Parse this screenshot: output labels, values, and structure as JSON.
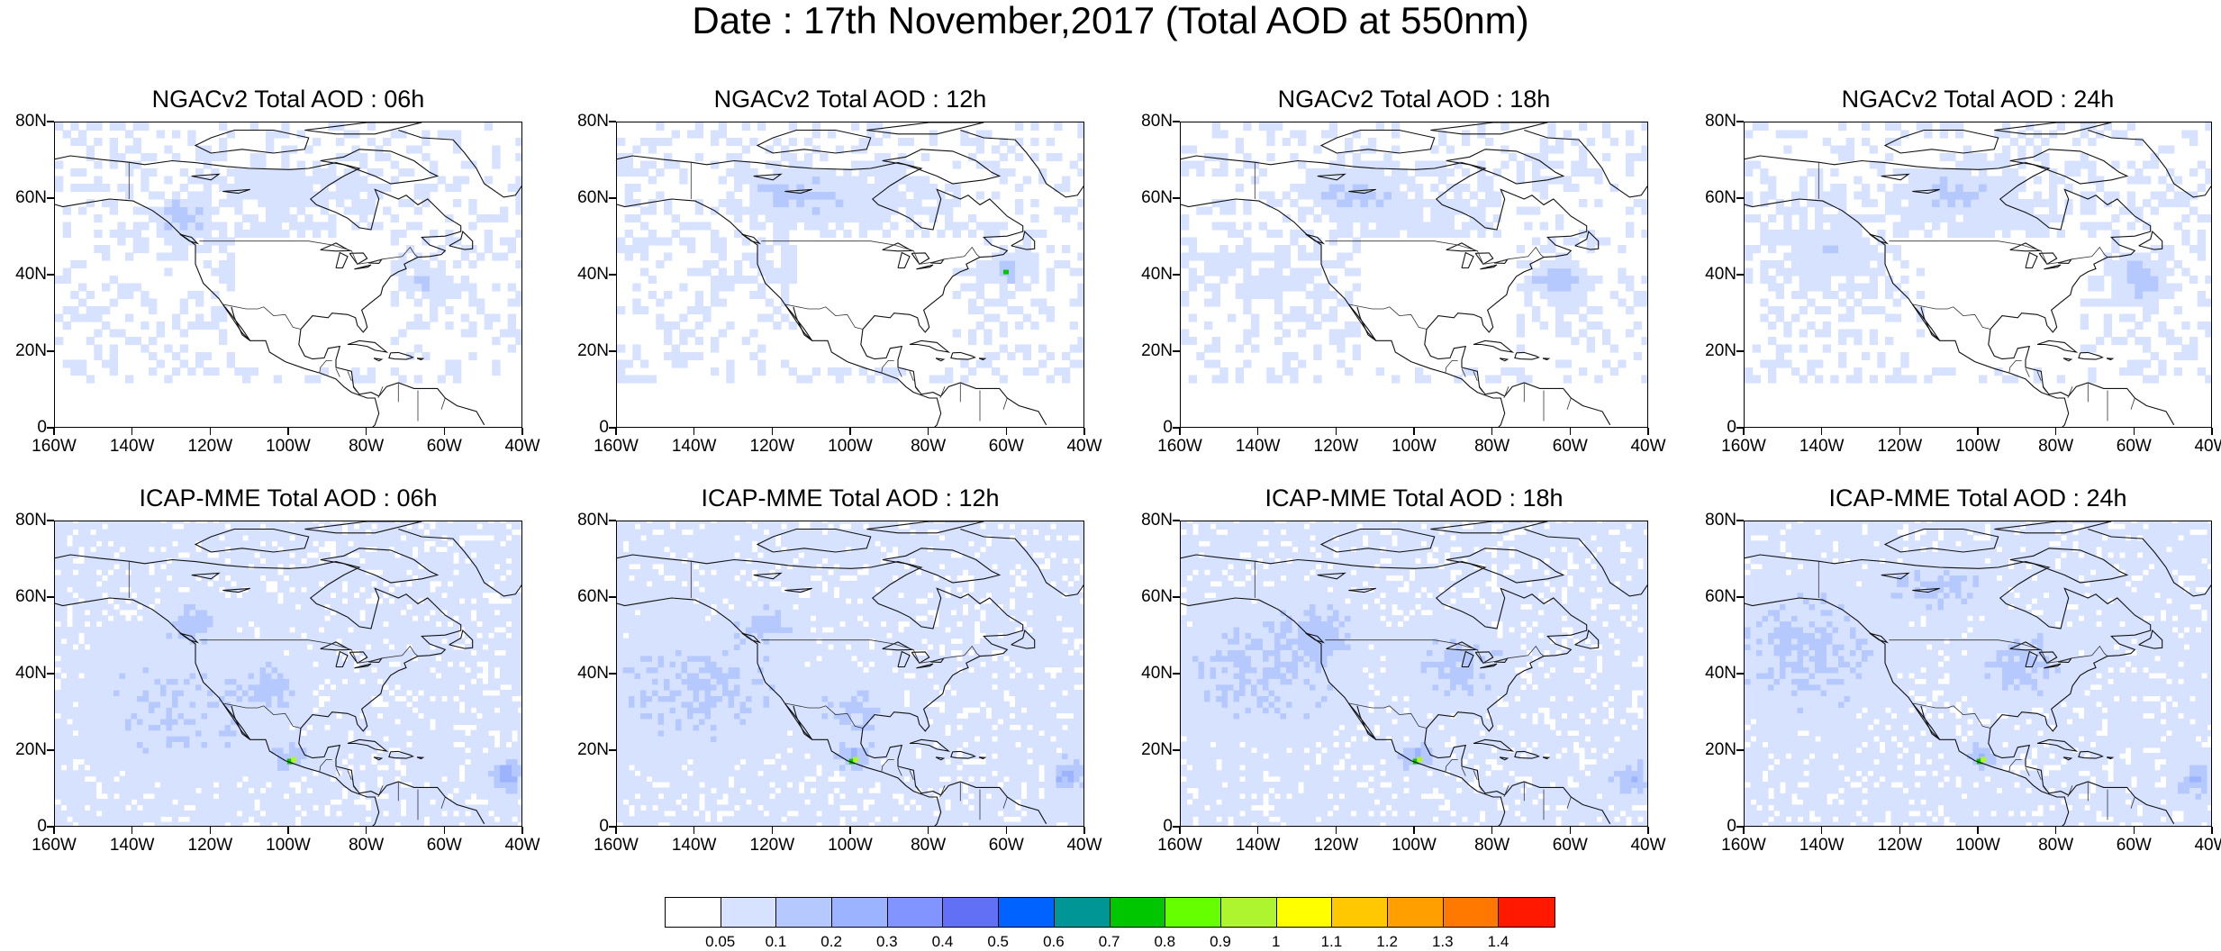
{
  "title": "Date : 17th November,2017 (Total AOD at 550nm)",
  "panels": [
    {
      "title": "NGACv2 Total AOD : 06h",
      "model": "NGACv2",
      "hour": "06h"
    },
    {
      "title": "NGACv2 Total AOD : 12h",
      "model": "NGACv2",
      "hour": "12h"
    },
    {
      "title": "NGACv2 Total AOD : 18h",
      "model": "NGACv2",
      "hour": "18h"
    },
    {
      "title": "NGACv2 Total AOD : 24h",
      "model": "NGACv2",
      "hour": "24h"
    },
    {
      "title": "ICAP-MME Total AOD : 06h",
      "model": "ICAP-MME",
      "hour": "06h"
    },
    {
      "title": "ICAP-MME Total AOD : 12h",
      "model": "ICAP-MME",
      "hour": "12h"
    },
    {
      "title": "ICAP-MME Total AOD : 18h",
      "model": "ICAP-MME",
      "hour": "18h"
    },
    {
      "title": "ICAP-MME Total AOD : 24h",
      "model": "ICAP-MME",
      "hour": "24h"
    }
  ],
  "axes": {
    "lat_labels": [
      "0",
      "20N",
      "40N",
      "60N",
      "80N"
    ],
    "lon_labels": [
      "160W",
      "140W",
      "120W",
      "100W",
      "80W",
      "60W",
      "40W"
    ],
    "lat_range": [
      0,
      80
    ],
    "lon_range": [
      -160,
      -40
    ]
  },
  "colorbar": {
    "labels": [
      "0.05",
      "0.1",
      "0.2",
      "0.3",
      "0.4",
      "0.5",
      "0.6",
      "0.7",
      "0.8",
      "0.9",
      "1",
      "1.1",
      "1.2",
      "1.3",
      "1.4"
    ],
    "colors": [
      "#ffffff",
      "#d6e2ff",
      "#b5c9ff",
      "#9cb3ff",
      "#8294ff",
      "#6270f5",
      "#0063ff",
      "#009696",
      "#00c600",
      "#66ff00",
      "#aef52f",
      "#ffff00",
      "#ffc800",
      "#ffa000",
      "#ff7800",
      "#ff1900"
    ]
  }
}
